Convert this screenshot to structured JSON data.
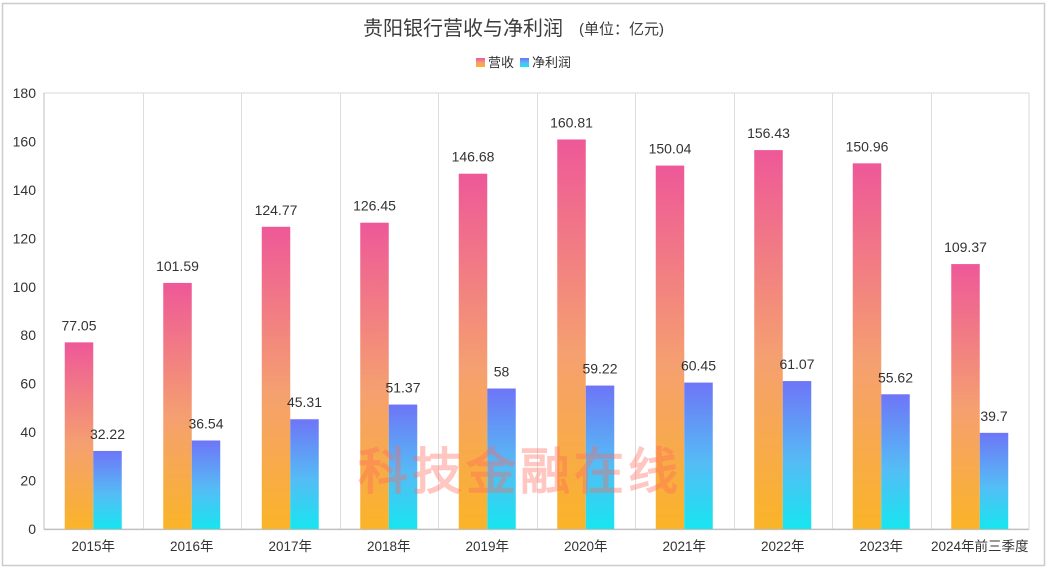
{
  "chart_data": {
    "type": "bar",
    "title": "贵阳银行营收与净利润",
    "subtitle": "(单位：亿元)",
    "xlabel": "",
    "ylabel": "",
    "categories": [
      "2015年",
      "2016年",
      "2017年",
      "2018年",
      "2019年",
      "2020年",
      "2021年",
      "2022年",
      "2023年",
      "2024年前三季度"
    ],
    "series": [
      {
        "name": "营收",
        "values": [
          77.05,
          101.59,
          124.77,
          126.45,
          146.68,
          160.81,
          150.04,
          156.43,
          150.96,
          109.37
        ],
        "labels": [
          "77.05",
          "101.59",
          "124.77",
          "126.45",
          "146.68",
          "160.81",
          "150.04",
          "156.43",
          "150.96",
          "109.37"
        ],
        "gradient": [
          "#EE5898",
          "#F5A070",
          "#FAB428"
        ]
      },
      {
        "name": "净利润",
        "values": [
          32.22,
          36.54,
          45.31,
          51.37,
          58,
          59.22,
          60.45,
          61.07,
          55.62,
          39.7
        ],
        "labels": [
          "32.22",
          "36.54",
          "45.31",
          "51.37",
          "58",
          "59.22",
          "60.45",
          "61.07",
          "55.62",
          "39.7"
        ],
        "gradient": [
          "#6E75F7",
          "#55BCF5",
          "#17E5F0"
        ]
      }
    ],
    "ylim": [
      0,
      180
    ],
    "yticks": [
      0,
      20,
      40,
      60,
      80,
      100,
      120,
      140,
      160,
      180
    ],
    "grid": "vertical category separators",
    "legend_position": "top-center",
    "watermark": "科技金融在线"
  }
}
